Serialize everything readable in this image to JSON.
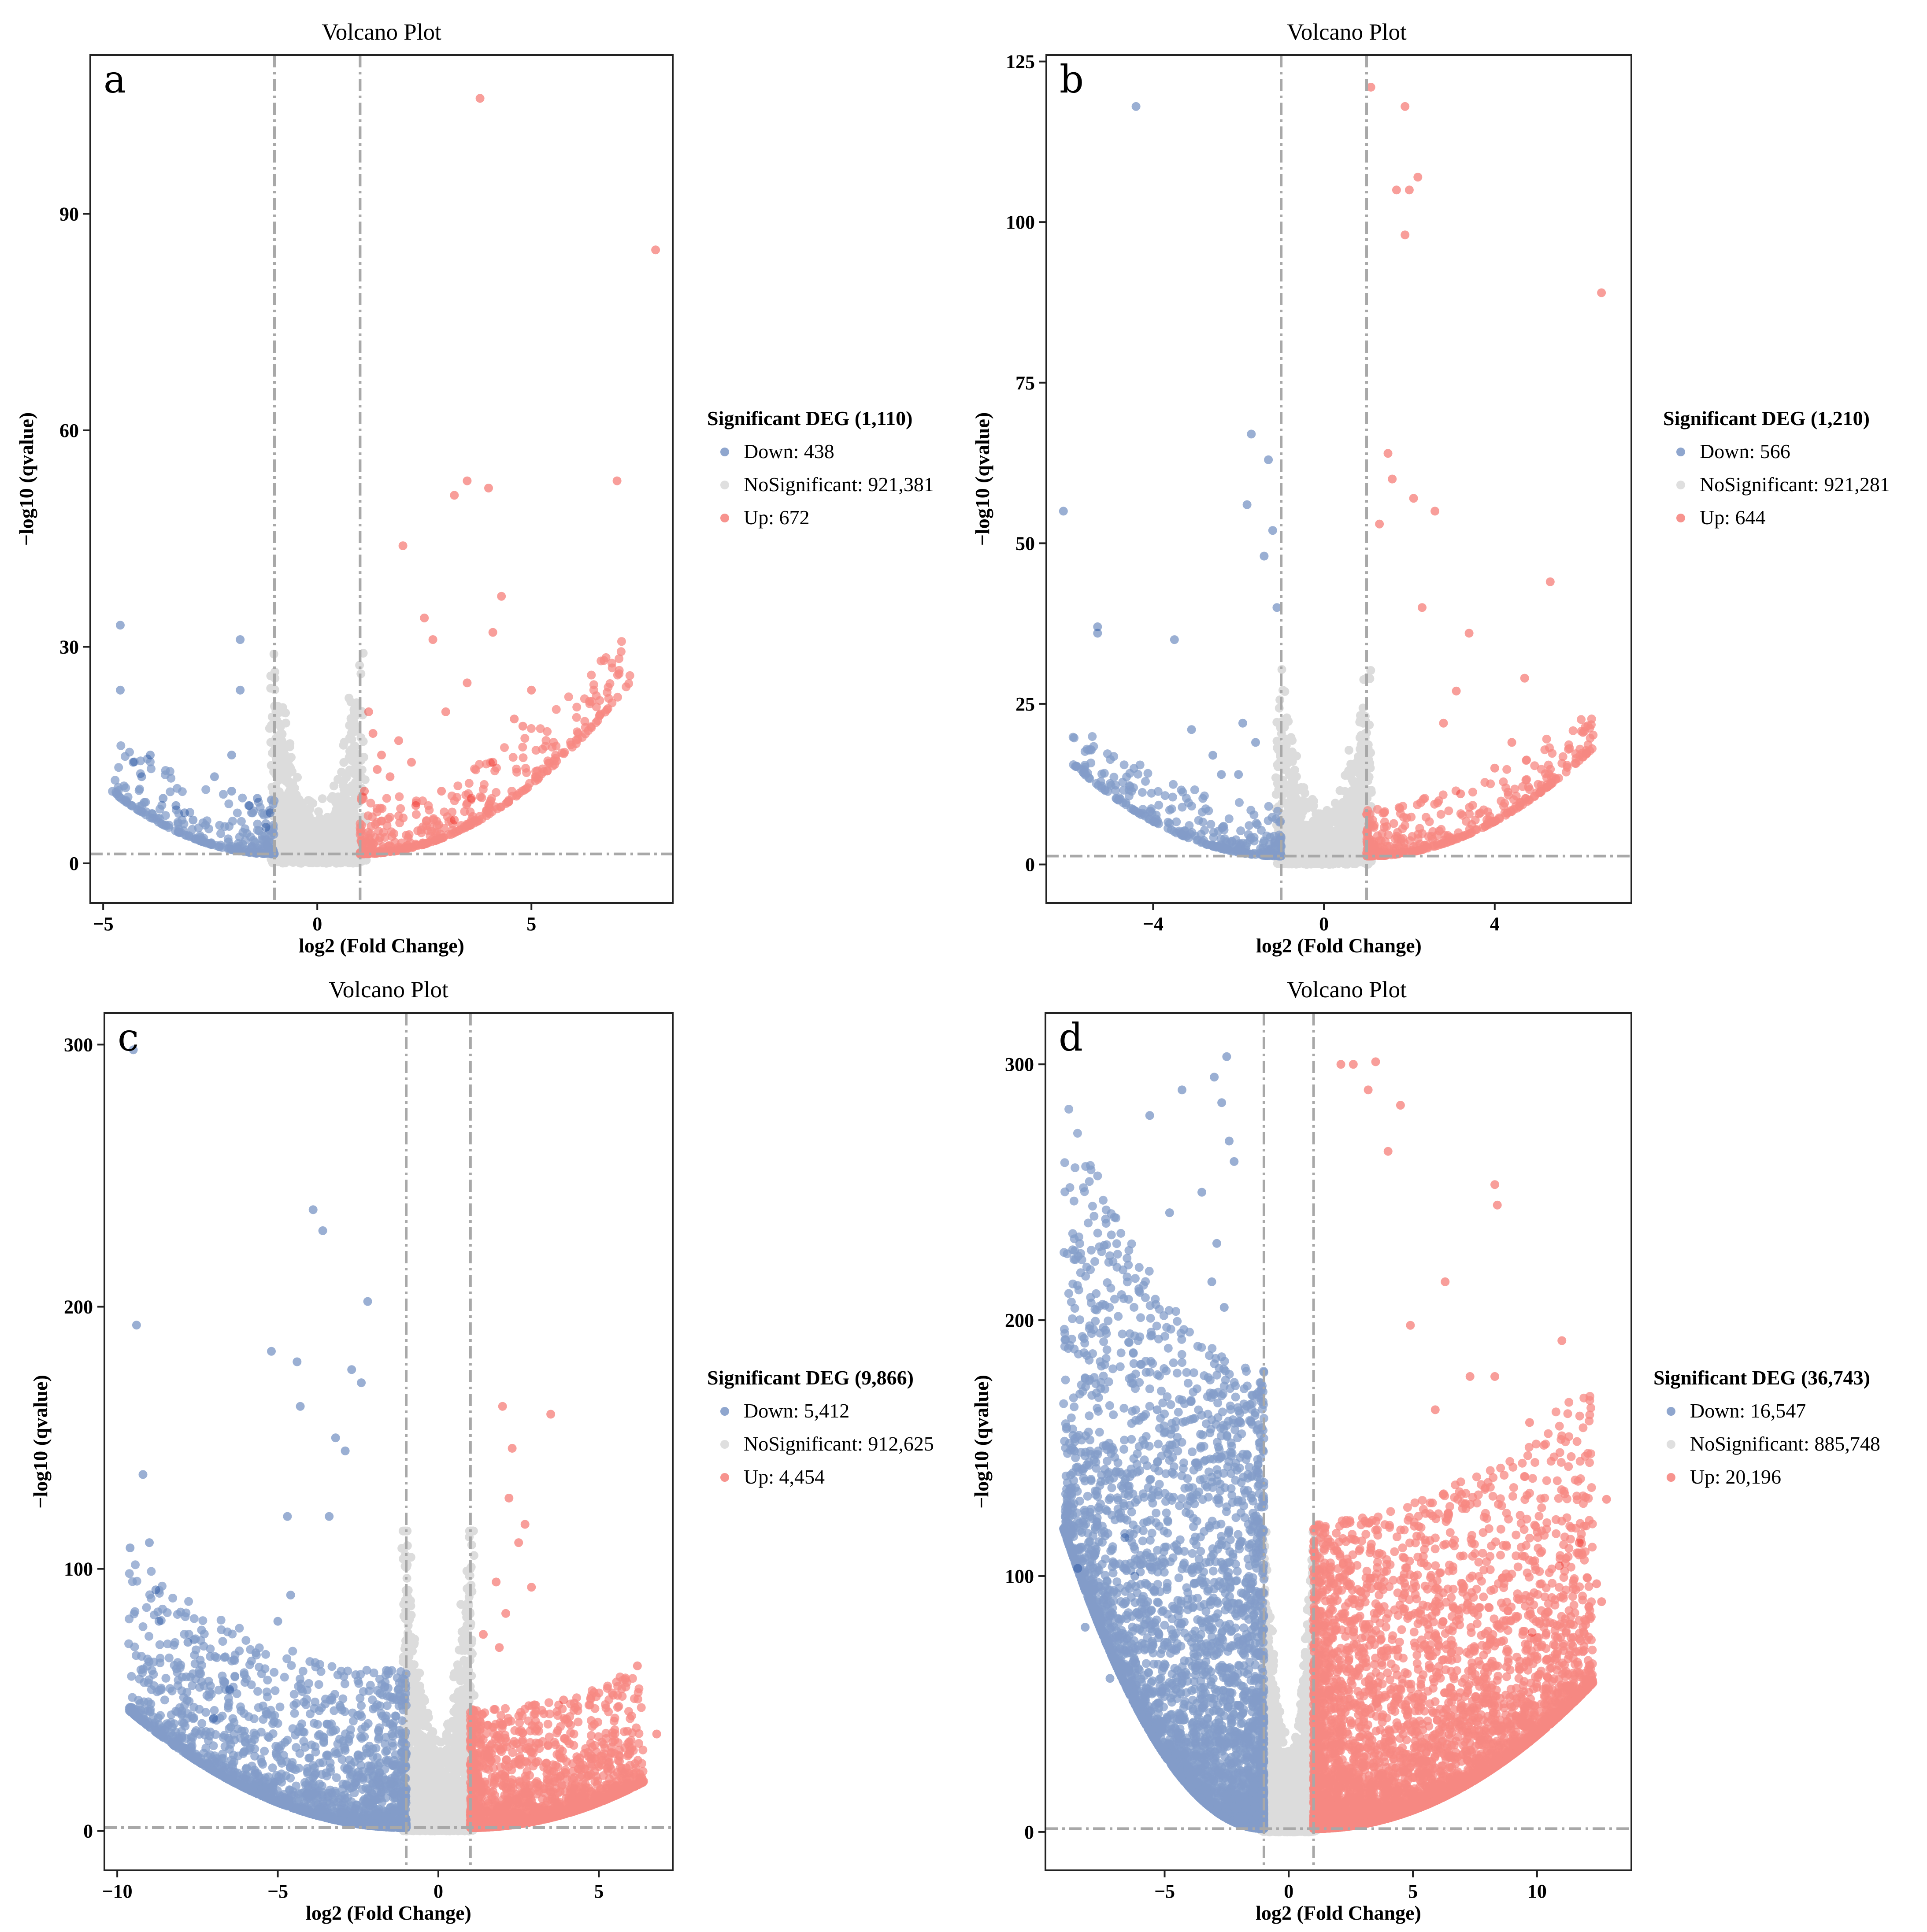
{
  "chart_data": [
    {
      "panel_label": "a",
      "type": "scatter",
      "title": "Volcano Plot",
      "xlabel": "log2 (Fold Change)",
      "ylabel": "−log10 (qvalue)",
      "xlim": [
        -5.3,
        8.3
      ],
      "ylim": [
        -5.5,
        112
      ],
      "xticks": [
        -5,
        0,
        5
      ],
      "xtick_labels": [
        "−5",
        "0",
        "5"
      ],
      "yticks": [
        0,
        30,
        60,
        90
      ],
      "ytick_labels": [
        "0",
        "30",
        "60",
        "90"
      ],
      "threshold_log2fc": [
        -1,
        1
      ],
      "threshold_neglog10q": 1.3,
      "legend": {
        "title": "Significant DEG (1,110)",
        "entries": [
          {
            "label": "Down: 438",
            "color": "#1f4e9e"
          },
          {
            "label": "NoSignificant: 921,381",
            "color": "#c0c0c0"
          },
          {
            "label": "Up: 672",
            "color": "#f0281e"
          }
        ]
      },
      "series": [
        {
          "name": "Down",
          "color": "#1f4e9e",
          "x": [
            -4.6,
            -4.6,
            -4.3,
            -4.1,
            -3.9,
            -3.6,
            -3.3,
            -3.1,
            -2.9,
            -2.4,
            -2.0,
            -1.8,
            -2.0,
            -1.8,
            -1.4,
            -1.2,
            -1.6,
            -1.1
          ],
          "y": [
            33,
            24,
            14,
            12,
            15,
            9,
            8,
            7,
            6,
            12,
            15,
            31,
            10,
            24,
            9,
            5,
            8,
            7
          ]
        },
        {
          "name": "Up",
          "color": "#f0281e",
          "x": [
            3.8,
            7.9,
            7.0,
            3.5,
            4.0,
            3.2,
            2.0,
            2.5,
            4.3,
            4.1,
            5.0,
            3.5,
            4.6,
            4.8,
            3.0,
            2.7,
            1.3,
            1.9,
            2.2,
            2.9,
            3.6,
            4.1,
            1.7,
            1.5,
            2.3,
            3.2,
            1.2,
            1.4,
            1.1
          ],
          "y": [
            106,
            85,
            53,
            53,
            52,
            51,
            44,
            34,
            37,
            32,
            24,
            25,
            20,
            19,
            21,
            31,
            18,
            17,
            14,
            10,
            9,
            14,
            12,
            15,
            8,
            6,
            21,
            13,
            10
          ]
        }
      ]
    },
    {
      "panel_label": "b",
      "type": "scatter",
      "title": "Volcano Plot",
      "xlabel": "log2 (Fold Change)",
      "ylabel": "−log10 (qvalue)",
      "xlim": [
        -6.5,
        7.2
      ],
      "ylim": [
        -6,
        126
      ],
      "xticks": [
        -4,
        0,
        4
      ],
      "xtick_labels": [
        "−4",
        "0",
        "4"
      ],
      "yticks": [
        0,
        25,
        50,
        75,
        100,
        125
      ],
      "ytick_labels": [
        "0",
        "25",
        "50",
        "75",
        "100",
        "125"
      ],
      "threshold_log2fc": [
        -1,
        1
      ],
      "threshold_neglog10q": 1.3,
      "legend": {
        "title": "Significant DEG (1,210)",
        "entries": [
          {
            "label": "Down: 566",
            "color": "#1f4e9e"
          },
          {
            "label": "NoSignificant: 921,281",
            "color": "#c0c0c0"
          },
          {
            "label": "Up: 644",
            "color": "#f0281e"
          }
        ]
      },
      "series": [
        {
          "name": "Down",
          "color": "#1f4e9e",
          "x": [
            -4.4,
            -6.1,
            -5.3,
            -5.3,
            -1.7,
            -1.3,
            -1.8,
            -1.2,
            -1.4,
            -1.1,
            -3.5,
            -3.1,
            -2.6,
            -2.4,
            -1.9,
            -2.0,
            -1.6
          ],
          "y": [
            118,
            55,
            37,
            36,
            67,
            63,
            56,
            52,
            48,
            40,
            35,
            21,
            17,
            14,
            22,
            14,
            19
          ]
        },
        {
          "name": "Up",
          "color": "#f0281e",
          "x": [
            1.1,
            1.9,
            2.2,
            2.0,
            1.7,
            1.9,
            6.5,
            1.5,
            2.6,
            4.7,
            5.3,
            3.4,
            4.0,
            2.3,
            1.3,
            2.1,
            3.1,
            4.4,
            1.6,
            2.8,
            3.2
          ],
          "y": [
            121,
            118,
            107,
            105,
            105,
            98,
            89,
            64,
            55,
            29,
            44,
            36,
            15,
            40,
            53,
            57,
            27,
            19,
            60,
            22,
            11
          ]
        }
      ]
    },
    {
      "panel_label": "c",
      "type": "scatter",
      "title": "Volcano Plot",
      "xlabel": "log2 (Fold Change)",
      "ylabel": "−log10 (qvalue)",
      "xlim": [
        -10.4,
        7.3
      ],
      "ylim": [
        -15,
        312
      ],
      "xticks": [
        -10,
        -5,
        0,
        5
      ],
      "xtick_labels": [
        "−10",
        "−5",
        "0",
        "5"
      ],
      "yticks": [
        0,
        100,
        200,
        300
      ],
      "ytick_labels": [
        "0",
        "100",
        "200",
        "300"
      ],
      "threshold_log2fc": [
        -1,
        1
      ],
      "threshold_neglog10q": 1.3,
      "legend": {
        "title": "Significant DEG (9,866)",
        "entries": [
          {
            "label": "Down: 5,412",
            "color": "#1f4e9e"
          },
          {
            "label": "NoSignificant: 912,625",
            "color": "#c0c0c0"
          },
          {
            "label": "Up: 4,454",
            "color": "#f0281e"
          }
        ]
      },
      "series": [
        {
          "name": "Down",
          "color": "#1f4e9e",
          "x": [
            -9.5,
            -9.4,
            -9.2,
            -9.0,
            -8.8,
            -8.7,
            -9.6,
            -7.8,
            -7.0,
            -6.5,
            -5.2,
            -4.7,
            -4.4,
            -4.3,
            -3.9,
            -3.6,
            -2.2,
            -2.7,
            -2.4,
            -3.2,
            -2.9,
            -4.6,
            -5.0,
            -3.4
          ],
          "y": [
            298,
            193,
            136,
            110,
            92,
            80,
            108,
            72,
            43,
            54,
            183,
            120,
            179,
            162,
            237,
            229,
            202,
            176,
            171,
            150,
            145,
            90,
            80,
            120
          ]
        },
        {
          "name": "Up",
          "color": "#f0281e",
          "x": [
            2.0,
            3.5,
            2.3,
            2.7,
            2.9,
            2.5,
            6.2,
            6.8,
            1.8,
            2.2,
            3.9,
            2.1,
            1.4,
            1.9
          ],
          "y": [
            162,
            159,
            146,
            117,
            93,
            110,
            63,
            37,
            95,
            127,
            50,
            83,
            75,
            70
          ]
        }
      ]
    },
    {
      "panel_label": "d",
      "type": "scatter",
      "title": "Volcano Plot",
      "xlabel": "log2 (Fold Change)",
      "ylabel": "−log10 (qvalue)",
      "xlim": [
        -9.8,
        13.8
      ],
      "ylim": [
        -15,
        320
      ],
      "xticks": [
        -5,
        0,
        5,
        10
      ],
      "xtick_labels": [
        "−5",
        "0",
        "5",
        "10"
      ],
      "yticks": [
        0,
        100,
        200,
        300
      ],
      "ytick_labels": [
        "0",
        "100",
        "200",
        "300"
      ],
      "threshold_log2fc": [
        -1,
        1
      ],
      "threshold_neglog10q": 1.3,
      "legend": {
        "title": "Significant DEG (36,743)",
        "entries": [
          {
            "label": "Down: 16,547",
            "color": "#1f4e9e"
          },
          {
            "label": "NoSignificant: 885,748",
            "color": "#c0c0c0"
          },
          {
            "label": "Up: 20,196",
            "color": "#f0281e"
          }
        ]
      },
      "series": [
        {
          "name": "Down",
          "color": "#1f4e9e",
          "x": [
            -8.5,
            -8.2,
            -7.2,
            -6.6,
            -6.2,
            -5.6,
            -5.3,
            -4.8,
            -4.3,
            -2.5,
            -2.7,
            -3.0,
            -2.4,
            -3.5,
            -2.2,
            -2.9,
            -3.1,
            -2.6
          ],
          "y": [
            103,
            80,
            60,
            115,
            100,
            280,
            165,
            242,
            290,
            303,
            285,
            295,
            270,
            250,
            262,
            230,
            215,
            205
          ]
        },
        {
          "name": "Up",
          "color": "#f0281e",
          "x": [
            3.5,
            2.6,
            4.5,
            4.0,
            3.2,
            8.3,
            8.4,
            11.0,
            12.8,
            12.4,
            10.9,
            9.8,
            7.3,
            6.3,
            12.6,
            9.7,
            11.7,
            8.3,
            5.9,
            4.9,
            2.1
          ],
          "y": [
            301,
            300,
            284,
            266,
            290,
            253,
            245,
            192,
            130,
            97,
            104,
            78,
            178,
            215,
            90,
            160,
            113,
            178,
            165,
            198,
            300
          ]
        }
      ]
    }
  ]
}
